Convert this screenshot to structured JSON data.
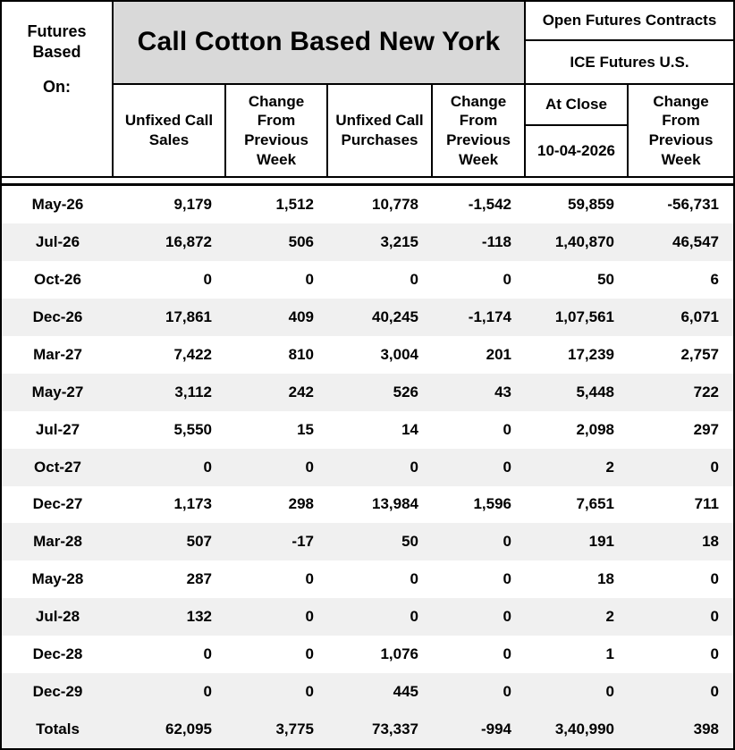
{
  "header": {
    "futures_based": "Futures Based",
    "on": "On:",
    "title": "Call Cotton Based New York",
    "open_futures": "Open Futures Contracts",
    "ice_futures": "ICE Futures U.S.",
    "col_unfixed_sales": "Unfixed Call Sales",
    "col_change": "Change From Previous Week",
    "col_unfixed_purchases": "Unfixed Call Purchases",
    "col_at_close": "At Close",
    "col_at_close_date": "10-04-2026"
  },
  "chart_data": {
    "type": "table",
    "title": "Call Cotton Based New York",
    "row_header": "Futures Based On:",
    "right_group_header": "Open Futures Contracts",
    "right_group_subheader": "ICE Futures U.S.",
    "columns": [
      "Unfixed Call Sales",
      "Change From Previous Week",
      "Unfixed Call Purchases",
      "Change From Previous Week",
      "At Close 10-04-2026",
      "Change From Previous Week"
    ],
    "rows": [
      {
        "label": "May-26",
        "values": [
          "9,179",
          "1,512",
          "10,778",
          "-1,542",
          "59,859",
          "-56,731"
        ]
      },
      {
        "label": "Jul-26",
        "values": [
          "16,872",
          "506",
          "3,215",
          "-118",
          "1,40,870",
          "46,547"
        ]
      },
      {
        "label": "Oct-26",
        "values": [
          "0",
          "0",
          "0",
          "0",
          "50",
          "6"
        ]
      },
      {
        "label": "Dec-26",
        "values": [
          "17,861",
          "409",
          "40,245",
          "-1,174",
          "1,07,561",
          "6,071"
        ]
      },
      {
        "label": "Mar-27",
        "values": [
          "7,422",
          "810",
          "3,004",
          "201",
          "17,239",
          "2,757"
        ]
      },
      {
        "label": "May-27",
        "values": [
          "3,112",
          "242",
          "526",
          "43",
          "5,448",
          "722"
        ]
      },
      {
        "label": "Jul-27",
        "values": [
          "5,550",
          "15",
          "14",
          "0",
          "2,098",
          "297"
        ]
      },
      {
        "label": "Oct-27",
        "values": [
          "0",
          "0",
          "0",
          "0",
          "2",
          "0"
        ]
      },
      {
        "label": "Dec-27",
        "values": [
          "1,173",
          "298",
          "13,984",
          "1,596",
          "7,651",
          "711"
        ]
      },
      {
        "label": "Mar-28",
        "values": [
          "507",
          "-17",
          "50",
          "0",
          "191",
          "18"
        ]
      },
      {
        "label": "May-28",
        "values": [
          "287",
          "0",
          "0",
          "0",
          "18",
          "0"
        ]
      },
      {
        "label": "Jul-28",
        "values": [
          "132",
          "0",
          "0",
          "0",
          "2",
          "0"
        ]
      },
      {
        "label": "Dec-28",
        "values": [
          "0",
          "0",
          "1,076",
          "0",
          "1",
          "0"
        ]
      },
      {
        "label": "Dec-29",
        "values": [
          "0",
          "0",
          "445",
          "0",
          "0",
          "0"
        ]
      },
      {
        "label": "Totals",
        "values": [
          "62,095",
          "3,775",
          "73,337",
          "-994",
          "3,40,990",
          "398"
        ]
      }
    ]
  },
  "colors": {
    "title_background": "#d9d9d9",
    "stripe_background": "#f0f0f0",
    "border": "#000000",
    "text": "#000000"
  }
}
